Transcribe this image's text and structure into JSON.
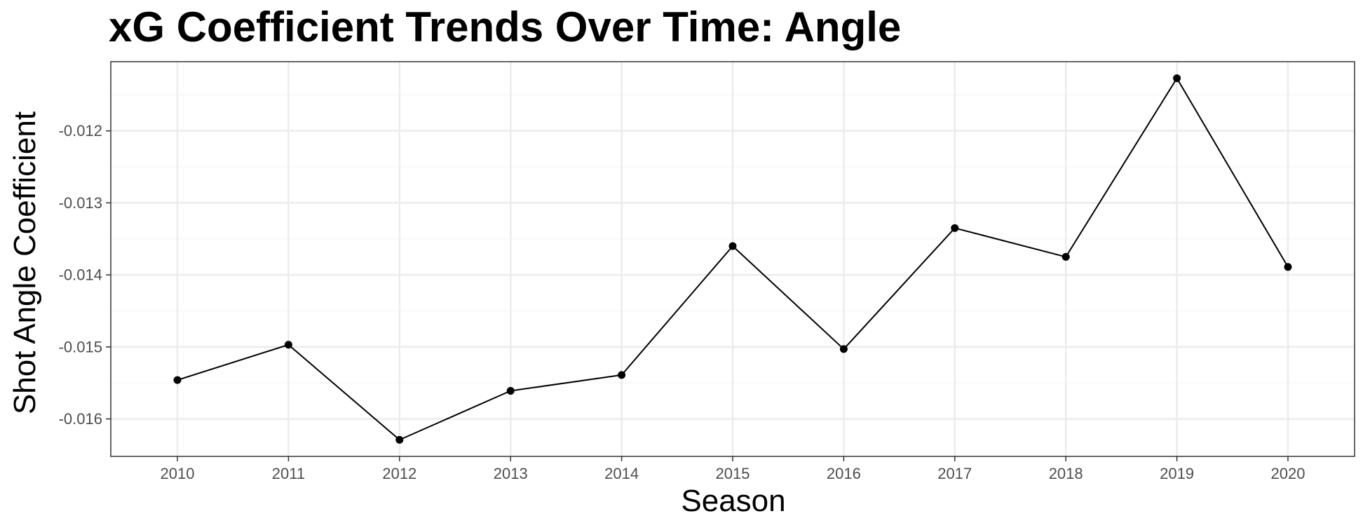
{
  "chart_data": {
    "type": "line",
    "title": "xG Coefficient Trends Over Time: Angle",
    "xlabel": "Season",
    "ylabel": "Shot Angle Coefficient",
    "x": [
      2010,
      2011,
      2012,
      2013,
      2014,
      2015,
      2016,
      2017,
      2018,
      2019,
      2020
    ],
    "series": [
      {
        "values": [
          -0.01546,
          -0.01497,
          -0.01629,
          -0.01561,
          -0.01539,
          -0.0136,
          -0.01503,
          -0.01335,
          -0.01375,
          -0.01127,
          -0.01389
        ]
      }
    ],
    "xlim": [
      2009.4,
      2020.6
    ],
    "ylim": [
      -0.01652,
      -0.01104
    ],
    "x_ticks": [
      "2010",
      "2011",
      "2012",
      "2013",
      "2014",
      "2015",
      "2016",
      "2017",
      "2018",
      "2019",
      "2020"
    ],
    "y_ticks": [
      "-0.012",
      "-0.013",
      "-0.014",
      "-0.015",
      "-0.016"
    ],
    "y_tick_values": [
      -0.012,
      -0.013,
      -0.014,
      -0.015,
      -0.016
    ],
    "y_minor_values": [
      -0.0115,
      -0.0125,
      -0.0135,
      -0.0145,
      -0.0155
    ],
    "grid": true,
    "legend": "none",
    "colors": {
      "line": "#000000",
      "point": "#000000",
      "grid_major": "#ebebeb",
      "grid_minor": "#f5f5f5",
      "panel_border": "#333333",
      "tick_label": "#4d4d4d"
    }
  }
}
